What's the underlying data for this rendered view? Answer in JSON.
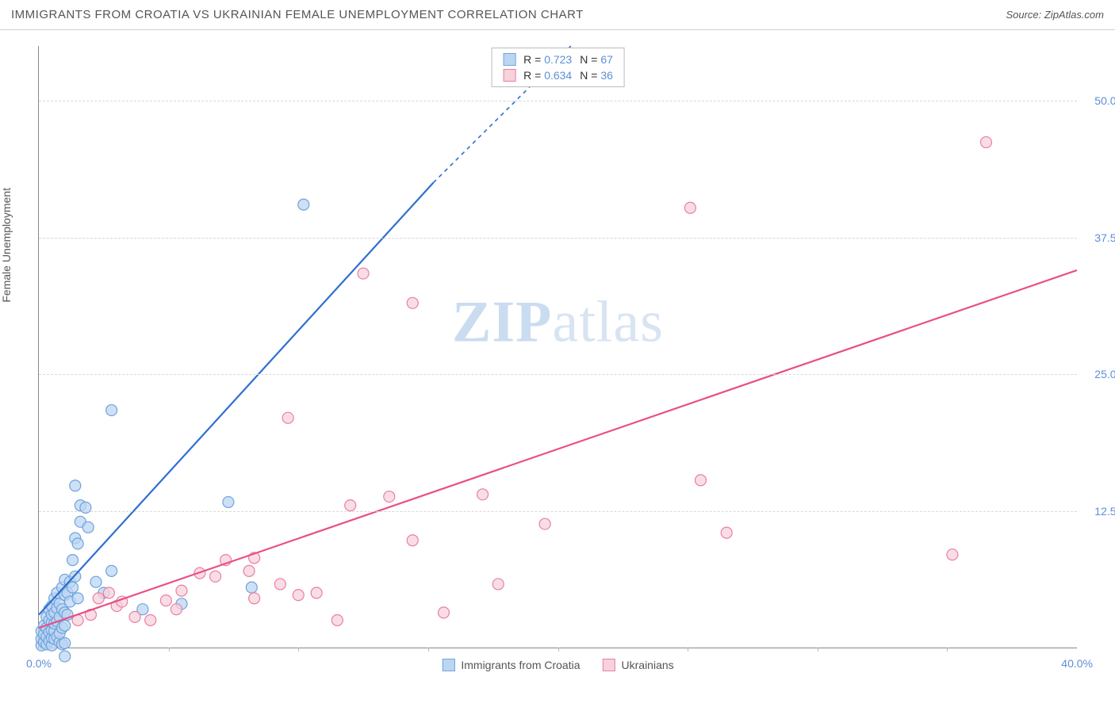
{
  "title": "IMMIGRANTS FROM CROATIA VS UKRAINIAN FEMALE UNEMPLOYMENT CORRELATION CHART",
  "source_label": "Source: ",
  "source_value": "ZipAtlas.com",
  "ylabel": "Female Unemployment",
  "watermark_a": "ZIP",
  "watermark_b": "atlas",
  "chart": {
    "type": "scatter",
    "xlim": [
      0,
      40
    ],
    "ylim": [
      0,
      55
    ],
    "xticks": [
      0,
      40
    ],
    "xtick_labels": [
      "0.0%",
      "40.0%"
    ],
    "yticks": [
      12.5,
      25.0,
      37.5,
      50.0
    ],
    "ytick_labels": [
      "12.5%",
      "25.0%",
      "37.5%",
      "50.0%"
    ],
    "grid_color": "#d8d8d8",
    "axis_color": "#888888",
    "background": "#ffffff",
    "label_color": "#5b8fd6",
    "series": [
      {
        "name": "Immigrants from Croatia",
        "color_fill": "#bcd6f2",
        "color_stroke": "#6fa3dd",
        "trend_color": "#2e6fd0",
        "R": 0.723,
        "N": 67,
        "trend": {
          "x1": 0,
          "y1": 3.0,
          "x2": 15.2,
          "y2": 42.5,
          "dash_after_x": 15.2,
          "dash_to_x": 20.5,
          "dash_to_y": 55
        },
        "points": [
          [
            0.1,
            0.2
          ],
          [
            0.1,
            0.8
          ],
          [
            0.1,
            1.5
          ],
          [
            0.2,
            0.5
          ],
          [
            0.2,
            1.2
          ],
          [
            0.2,
            2.0
          ],
          [
            0.3,
            0.3
          ],
          [
            0.3,
            1.0
          ],
          [
            0.3,
            1.8
          ],
          [
            0.3,
            2.8
          ],
          [
            0.4,
            0.6
          ],
          [
            0.4,
            1.4
          ],
          [
            0.4,
            2.5
          ],
          [
            0.4,
            3.5
          ],
          [
            0.5,
            0.2
          ],
          [
            0.5,
            0.9
          ],
          [
            0.5,
            1.6
          ],
          [
            0.5,
            2.3
          ],
          [
            0.5,
            3.0
          ],
          [
            0.5,
            3.8
          ],
          [
            0.6,
            0.8
          ],
          [
            0.6,
            1.5
          ],
          [
            0.6,
            2.2
          ],
          [
            0.6,
            3.2
          ],
          [
            0.6,
            4.5
          ],
          [
            0.7,
            1.0
          ],
          [
            0.7,
            2.4
          ],
          [
            0.7,
            3.6
          ],
          [
            0.7,
            5.0
          ],
          [
            0.8,
            0.5
          ],
          [
            0.8,
            1.3
          ],
          [
            0.8,
            2.8
          ],
          [
            0.8,
            4.0
          ],
          [
            0.9,
            0.3
          ],
          [
            0.9,
            1.8
          ],
          [
            0.9,
            3.5
          ],
          [
            0.9,
            5.5
          ],
          [
            1.0,
            0.4
          ],
          [
            1.0,
            2.0
          ],
          [
            1.0,
            3.2
          ],
          [
            1.0,
            4.8
          ],
          [
            1.0,
            6.2
          ],
          [
            1.1,
            3.0
          ],
          [
            1.1,
            5.0
          ],
          [
            1.2,
            4.2
          ],
          [
            1.2,
            6.0
          ],
          [
            1.3,
            5.5
          ],
          [
            1.3,
            8.0
          ],
          [
            1.4,
            6.5
          ],
          [
            1.4,
            10.0
          ],
          [
            1.5,
            4.5
          ],
          [
            1.5,
            9.5
          ],
          [
            1.6,
            11.5
          ],
          [
            1.6,
            13.0
          ],
          [
            1.8,
            12.8
          ],
          [
            1.9,
            11.0
          ],
          [
            1.4,
            14.8
          ],
          [
            2.2,
            6.0
          ],
          [
            2.5,
            5.0
          ],
          [
            2.8,
            7.0
          ],
          [
            2.8,
            21.7
          ],
          [
            4.0,
            3.5
          ],
          [
            5.5,
            4.0
          ],
          [
            7.3,
            13.3
          ],
          [
            8.2,
            5.5
          ],
          [
            10.2,
            40.5
          ],
          [
            1.0,
            -0.8
          ]
        ]
      },
      {
        "name": "Ukrainians",
        "color_fill": "#f7d1dc",
        "color_stroke": "#e97fa4",
        "trend_color": "#e84f88",
        "R": 0.634,
        "N": 36,
        "trend": {
          "x1": 0,
          "y1": 1.8,
          "x2": 40,
          "y2": 34.5
        },
        "points": [
          [
            1.5,
            2.5
          ],
          [
            2.0,
            3.0
          ],
          [
            2.3,
            4.5
          ],
          [
            2.7,
            5.0
          ],
          [
            3.0,
            3.8
          ],
          [
            3.2,
            4.2
          ],
          [
            3.7,
            2.8
          ],
          [
            4.3,
            2.5
          ],
          [
            4.9,
            4.3
          ],
          [
            5.3,
            3.5
          ],
          [
            5.5,
            5.2
          ],
          [
            6.2,
            6.8
          ],
          [
            6.8,
            6.5
          ],
          [
            7.2,
            8.0
          ],
          [
            8.1,
            7.0
          ],
          [
            8.3,
            4.5
          ],
          [
            8.3,
            8.2
          ],
          [
            9.3,
            5.8
          ],
          [
            9.6,
            21.0
          ],
          [
            10.0,
            4.8
          ],
          [
            10.7,
            5.0
          ],
          [
            11.5,
            2.5
          ],
          [
            12.0,
            13.0
          ],
          [
            12.5,
            34.2
          ],
          [
            13.5,
            13.8
          ],
          [
            14.4,
            31.5
          ],
          [
            14.4,
            9.8
          ],
          [
            15.6,
            3.2
          ],
          [
            17.1,
            14.0
          ],
          [
            17.7,
            5.8
          ],
          [
            19.5,
            11.3
          ],
          [
            25.1,
            40.2
          ],
          [
            25.5,
            15.3
          ],
          [
            26.5,
            10.5
          ],
          [
            35.2,
            8.5
          ],
          [
            36.5,
            46.2
          ]
        ]
      }
    ]
  },
  "legend_top": {
    "r_label": "R = ",
    "n_label": "N = "
  },
  "legend_bottom": {
    "items": [
      "Immigrants from Croatia",
      "Ukrainians"
    ]
  }
}
